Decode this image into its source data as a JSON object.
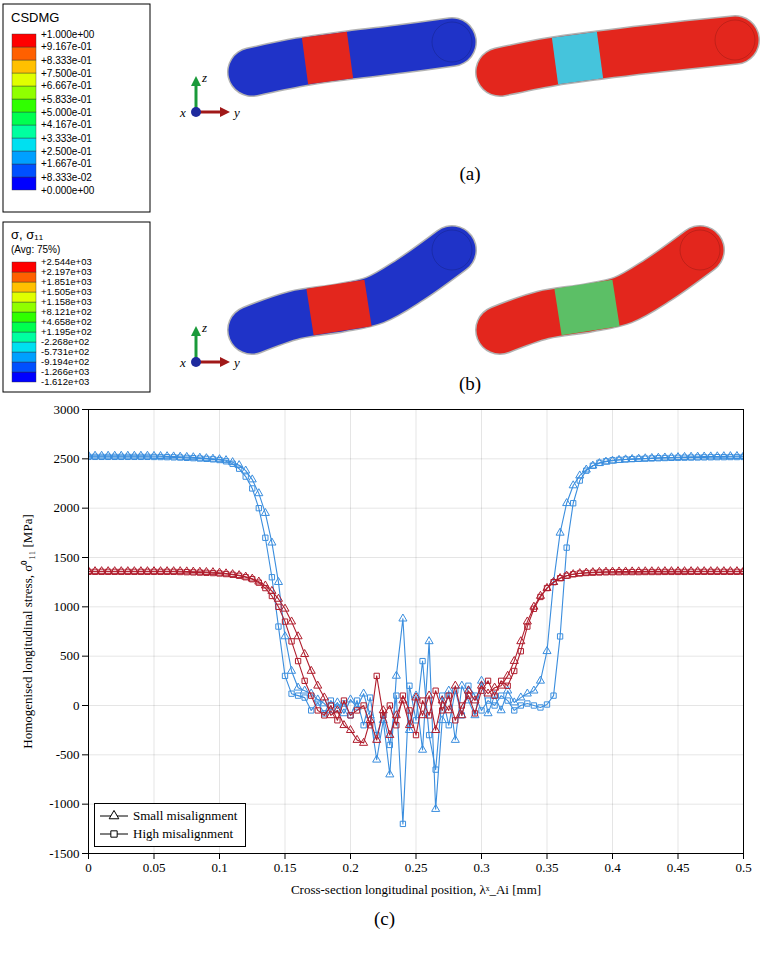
{
  "chart_data": {
    "type": "line",
    "caption": "(c)",
    "x_label": "Cross-section longitudinal position, λˣ_Ai [mm]",
    "y_label": "Homogenised longitudinal stress, σ⁰₁₁ [MPa]",
    "xlim": [
      0,
      0.5
    ],
    "xticks": [
      0,
      0.05,
      0.1,
      0.15,
      0.2,
      0.25,
      0.3,
      0.35,
      0.4,
      0.45,
      0.5
    ],
    "ylim": [
      -1500,
      3000
    ],
    "yticks": [
      -1500,
      -1000,
      -500,
      0,
      500,
      1000,
      1500,
      2000,
      2500,
      3000
    ],
    "grid": true,
    "legend": "lower left",
    "x": [
      0,
      0.005,
      0.01,
      0.015,
      0.02,
      0.025,
      0.03,
      0.035,
      0.04,
      0.045,
      0.05,
      0.055,
      0.06,
      0.065,
      0.07,
      0.075,
      0.08,
      0.085,
      0.09,
      0.095,
      0.1,
      0.105,
      0.11,
      0.115,
      0.12,
      0.125,
      0.13,
      0.135,
      0.14,
      0.145,
      0.15,
      0.155,
      0.16,
      0.165,
      0.17,
      0.175,
      0.18,
      0.185,
      0.19,
      0.195,
      0.2,
      0.205,
      0.21,
      0.215,
      0.22,
      0.225,
      0.23,
      0.235,
      0.24,
      0.245,
      0.25,
      0.255,
      0.26,
      0.265,
      0.27,
      0.275,
      0.28,
      0.285,
      0.29,
      0.295,
      0.3,
      0.305,
      0.31,
      0.315,
      0.32,
      0.325,
      0.33,
      0.335,
      0.34,
      0.345,
      0.35,
      0.355,
      0.36,
      0.365,
      0.37,
      0.375,
      0.38,
      0.385,
      0.39,
      0.395,
      0.4,
      0.405,
      0.41,
      0.415,
      0.42,
      0.425,
      0.43,
      0.435,
      0.44,
      0.445,
      0.45,
      0.455,
      0.46,
      0.465,
      0.47,
      0.475,
      0.48,
      0.485,
      0.49,
      0.495,
      0.5
    ],
    "series": [
      {
        "name": "Small misalignment",
        "color": "#3b8ede",
        "marker": "triangle",
        "values": [
          2530,
          2530,
          2530,
          2530,
          2530,
          2530,
          2530,
          2530,
          2530,
          2530,
          2528,
          2527,
          2525,
          2523,
          2520,
          2518,
          2515,
          2510,
          2505,
          2500,
          2495,
          2485,
          2465,
          2435,
          2380,
          2290,
          2150,
          1950,
          1650,
          1250,
          700,
          350,
          180,
          150,
          120,
          60,
          20,
          -50,
          30,
          -80,
          60,
          -20,
          120,
          -100,
          -550,
          -150,
          -700,
          300,
          880,
          -250,
          100,
          -450,
          650,
          -1050,
          -150,
          150,
          -350,
          200,
          50,
          -100,
          250,
          -80,
          100,
          -50,
          150,
          30,
          80,
          120,
          150,
          250,
          550,
          1250,
          1750,
          2050,
          2230,
          2330,
          2390,
          2430,
          2455,
          2470,
          2480,
          2488,
          2493,
          2497,
          2500,
          2504,
          2507,
          2510,
          2512,
          2514,
          2516,
          2518,
          2520,
          2521,
          2522,
          2523,
          2524,
          2525,
          2526,
          2527,
          2527
        ]
      },
      {
        "name": "High misalignment",
        "color": "#3b8ede",
        "marker": "square",
        "values": [
          2520,
          2520,
          2520,
          2520,
          2520,
          2520,
          2520,
          2520,
          2520,
          2520,
          2519,
          2518,
          2517,
          2515,
          2513,
          2510,
          2507,
          2503,
          2500,
          2495,
          2488,
          2475,
          2450,
          2400,
          2320,
          2200,
          2000,
          1700,
          1300,
          800,
          300,
          120,
          100,
          80,
          -50,
          30,
          -80,
          50,
          -30,
          20,
          -100,
          50,
          -200,
          80,
          -300,
          -100,
          -400,
          100,
          -1200,
          200,
          -150,
          450,
          -300,
          -650,
          100,
          -200,
          150,
          -100,
          200,
          100,
          -50,
          50,
          0,
          100,
          50,
          -50,
          0,
          20,
          0,
          -20,
          10,
          100,
          700,
          1600,
          2050,
          2280,
          2380,
          2430,
          2460,
          2475,
          2485,
          2490,
          2494,
          2497,
          2500,
          2502,
          2504,
          2506,
          2508,
          2510,
          2511,
          2512,
          2513,
          2514,
          2515,
          2516,
          2517,
          2517,
          2518,
          2518,
          2519
        ]
      },
      {
        "name": "Small misalignment",
        "color": "#b01e2e",
        "marker": "triangle",
        "values": [
          1360,
          1360,
          1360,
          1360,
          1360,
          1360,
          1360,
          1360,
          1360,
          1360,
          1360,
          1360,
          1360,
          1360,
          1360,
          1358,
          1356,
          1354,
          1352,
          1350,
          1345,
          1338,
          1330,
          1320,
          1305,
          1285,
          1255,
          1215,
          1160,
          1080,
          980,
          850,
          700,
          520,
          350,
          200,
          80,
          -100,
          -50,
          -200,
          -250,
          -350,
          -380,
          -150,
          -350,
          -50,
          -300,
          -100,
          50,
          -200,
          80,
          -100,
          100,
          -250,
          50,
          -50,
          200,
          -100,
          150,
          50,
          200,
          120,
          180,
          200,
          300,
          450,
          650,
          850,
          1000,
          1110,
          1190,
          1250,
          1290,
          1315,
          1330,
          1340,
          1346,
          1350,
          1353,
          1355,
          1356,
          1357,
          1357,
          1358,
          1358,
          1359,
          1359,
          1359,
          1360,
          1360,
          1360,
          1360,
          1360,
          1360,
          1360,
          1360,
          1360,
          1360,
          1360,
          1360,
          1360
        ]
      },
      {
        "name": "High misalignment",
        "color": "#b01e2e",
        "marker": "square",
        "values": [
          1355,
          1355,
          1355,
          1355,
          1355,
          1355,
          1355,
          1355,
          1355,
          1355,
          1355,
          1355,
          1355,
          1355,
          1353,
          1351,
          1349,
          1347,
          1345,
          1342,
          1338,
          1332,
          1325,
          1315,
          1300,
          1280,
          1245,
          1190,
          1110,
          1000,
          850,
          650,
          450,
          250,
          100,
          -50,
          -100,
          0,
          -150,
          50,
          -100,
          -50,
          0,
          -200,
          300,
          -100,
          0,
          -200,
          100,
          -50,
          -300,
          50,
          -100,
          150,
          -50,
          100,
          -150,
          0,
          100,
          -80,
          150,
          250,
          100,
          250,
          200,
          350,
          550,
          800,
          980,
          1100,
          1190,
          1250,
          1290,
          1315,
          1330,
          1338,
          1343,
          1346,
          1348,
          1350,
          1351,
          1351,
          1352,
          1352,
          1352,
          1353,
          1353,
          1353,
          1354,
          1354,
          1354,
          1354,
          1355,
          1355,
          1355,
          1355,
          1355,
          1355,
          1355,
          1355,
          1355
        ]
      }
    ]
  },
  "colorbars": [
    {
      "title": [
        "CSDMG"
      ],
      "ticks": [
        {
          "value": 1,
          "label": "+1.000e+00"
        },
        {
          "value": 0.9167,
          "label": "+9.167e-01"
        },
        {
          "value": 0.8333,
          "label": "+8.333e-01"
        },
        {
          "value": 0.75,
          "label": "+7.500e-01"
        },
        {
          "value": 0.6667,
          "label": "+6.667e-01"
        },
        {
          "value": 0.5833,
          "label": "+5.833e-01"
        },
        {
          "value": 0.5,
          "label": "+5.000e-01"
        },
        {
          "value": 0.4167,
          "label": "+4.167e-01"
        },
        {
          "value": 0.3333,
          "label": "+3.333e-01"
        },
        {
          "value": 0.25,
          "label": "+2.500e-01"
        },
        {
          "value": 0.1667,
          "label": "+1.667e-01"
        },
        {
          "value": 0.08333,
          "label": "+8.333e-02"
        },
        {
          "value": 0,
          "label": "+0.000e+00"
        }
      ]
    },
    {
      "title": [
        "σ, σ₁₁",
        "(Avg: 75%)"
      ],
      "ticks": [
        {
          "value": 2544,
          "label": "+2.544e+03"
        },
        {
          "value": 2197,
          "label": "+2.197e+03"
        },
        {
          "value": 1851,
          "label": "+1.851e+03"
        },
        {
          "value": 1505,
          "label": "+1.505e+03"
        },
        {
          "value": 1158,
          "label": "+1.158e+03"
        },
        {
          "value": 812.1,
          "label": "+8.121e+02"
        },
        {
          "value": 465.8,
          "label": "+4.658e+02"
        },
        {
          "value": 119.5,
          "label": "+1.195e+02"
        },
        {
          "value": -226.8,
          "label": "-2.268e+02"
        },
        {
          "value": -573.1,
          "label": "-5.731e+02"
        },
        {
          "value": -919.4,
          "label": "-9.194e+02"
        },
        {
          "value": -1266,
          "label": "-1.266e+03"
        },
        {
          "value": -1612,
          "label": "-1.612e+03"
        }
      ]
    }
  ],
  "renderings": {
    "panels": [
      "(a)",
      "(b)"
    ],
    "axis_labels": [
      "x",
      "y",
      "z"
    ]
  }
}
